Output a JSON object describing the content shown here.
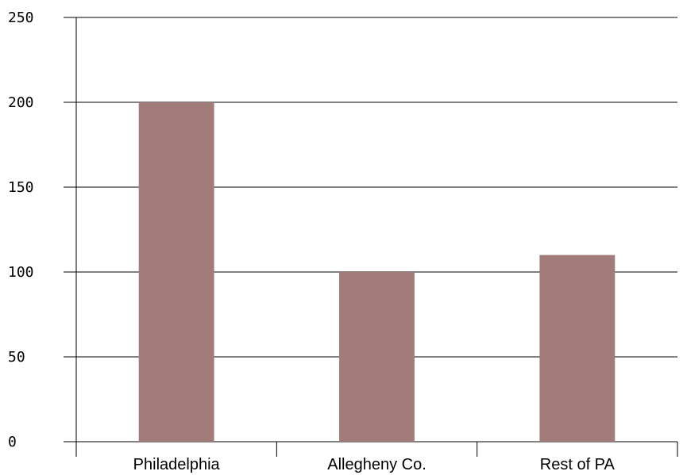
{
  "chart_data": {
    "type": "bar",
    "categories": [
      "Philadelphia",
      "Allegheny Co.",
      "Rest of PA"
    ],
    "values": [
      200,
      100,
      110
    ],
    "title": "",
    "xlabel": "",
    "ylabel": "",
    "ylim": [
      0,
      250
    ],
    "yticks": [
      "0",
      "50",
      "100",
      "150",
      "200",
      "250"
    ],
    "grid": true,
    "bar_color": "#a17c7b"
  }
}
